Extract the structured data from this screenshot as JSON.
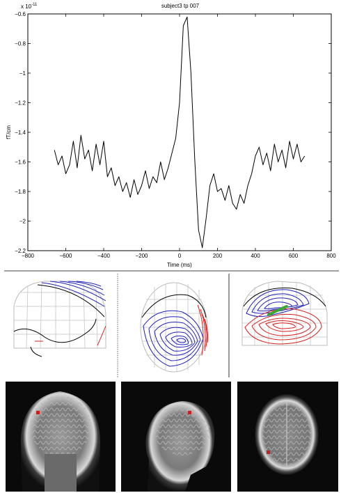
{
  "chart_data": {
    "type": "line",
    "title": "subject3 tp 007",
    "xlabel": "Time (ms)",
    "ylabel": "fT/cm",
    "y_exponent_label": "x 10",
    "y_exponent_power": "-11",
    "xlim": [
      -800,
      800
    ],
    "ylim": [
      -2.2,
      -0.6
    ],
    "xticks": [
      -800,
      -600,
      -400,
      -200,
      0,
      200,
      400,
      600,
      800
    ],
    "yticks": [
      -2.2,
      -2,
      -1.8,
      -1.6,
      -1.4,
      -1.2,
      -1,
      -0.8,
      -0.6
    ],
    "xtick_labels": [
      "−800",
      "−600",
      "−400",
      "−200",
      "0",
      "200",
      "400",
      "600",
      "800"
    ],
    "ytick_labels": [
      "−2.2",
      "−2",
      "−1.8",
      "−1.6",
      "−1.4",
      "−1.2",
      "−1",
      "−0.8",
      "−0.6"
    ],
    "grid": false,
    "series": [
      {
        "color": "#000000",
        "x": [
          -660,
          -640,
          -620,
          -600,
          -580,
          -560,
          -540,
          -520,
          -500,
          -480,
          -460,
          -440,
          -420,
          -400,
          -380,
          -360,
          -340,
          -320,
          -300,
          -280,
          -260,
          -240,
          -220,
          -200,
          -180,
          -160,
          -140,
          -120,
          -100,
          -80,
          -60,
          -40,
          -20,
          0,
          20,
          40,
          60,
          80,
          100,
          120,
          140,
          160,
          180,
          200,
          220,
          240,
          260,
          280,
          300,
          320,
          340,
          360,
          380,
          400,
          420,
          440,
          460,
          480,
          500,
          520,
          540,
          560,
          580,
          600,
          620,
          640,
          660
        ],
        "y": [
          -1.52,
          -1.62,
          -1.56,
          -1.68,
          -1.62,
          -1.46,
          -1.64,
          -1.42,
          -1.58,
          -1.52,
          -1.66,
          -1.48,
          -1.62,
          -1.46,
          -1.7,
          -1.64,
          -1.76,
          -1.7,
          -1.8,
          -1.74,
          -1.84,
          -1.72,
          -1.82,
          -1.76,
          -1.66,
          -1.78,
          -1.7,
          -1.74,
          -1.6,
          -1.72,
          -1.64,
          -1.54,
          -1.44,
          -1.2,
          -0.68,
          -0.62,
          -1.0,
          -1.58,
          -2.06,
          -2.18,
          -1.98,
          -1.76,
          -1.68,
          -1.8,
          -1.78,
          -1.86,
          -1.76,
          -1.88,
          -1.92,
          -1.82,
          -1.88,
          -1.76,
          -1.68,
          -1.56,
          -1.5,
          -1.62,
          -1.54,
          -1.66,
          -1.48,
          -1.6,
          -1.52,
          -1.64,
          -1.46,
          -1.58,
          -1.48,
          -1.6,
          -1.56
        ]
      }
    ]
  },
  "topomaps": [
    {
      "name": "left-lateral"
    },
    {
      "name": "top"
    },
    {
      "name": "right-lateral"
    }
  ],
  "mri_views": [
    {
      "name": "coronal"
    },
    {
      "name": "sagittal"
    },
    {
      "name": "axial"
    }
  ],
  "colors": {
    "positive": "#d62020",
    "negative": "#2020c0",
    "grid": "#b8b8b8",
    "zero": "#000000",
    "dipole": "#3aa832",
    "marker": "#c82020"
  }
}
